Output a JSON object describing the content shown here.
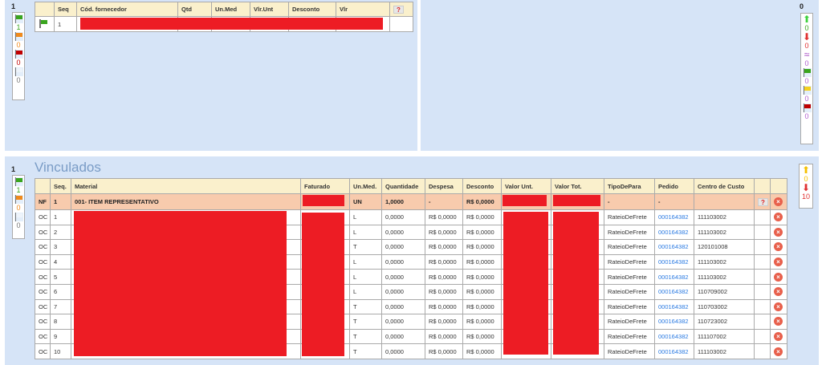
{
  "top_left": {
    "count": "1",
    "legend": [
      {
        "icon": "green-flag-icon",
        "color": "#3aa51e",
        "value": "1"
      },
      {
        "icon": "orange-flag-icon",
        "color": "#f08a1c",
        "value": "0"
      },
      {
        "icon": "red-flag-icon",
        "color": "#c00000",
        "value": "0"
      },
      {
        "icon": "white-flag-icon",
        "color": "#eef4fb",
        "value": "0"
      }
    ],
    "headers": [
      "",
      "Seq",
      "Cód. fornecedor",
      "Qtd",
      "Un.Med",
      "Vlr.Unt",
      "Desconto",
      "Vlr",
      ""
    ],
    "rows": [
      {
        "seq": "1"
      }
    ]
  },
  "top_right": {
    "count": "0",
    "legend": [
      {
        "icon": "arrow-up-icon",
        "glyph": "⬆",
        "color": "#3dd13d",
        "value": "0"
      },
      {
        "icon": "arrow-down-icon",
        "glyph": "⬇",
        "color": "#e03030",
        "value": "0"
      },
      {
        "icon": "approx-icon",
        "glyph": "≈",
        "color": "#a040c0",
        "value": "0"
      },
      {
        "icon": "green-flag-icon",
        "color": "#3aa51e",
        "value": "0"
      },
      {
        "icon": "yellow-flag-icon",
        "color": "#f5d020",
        "value": "0"
      },
      {
        "icon": "red-flag-icon",
        "color": "#c00000",
        "value": "0"
      }
    ]
  },
  "vinculados": {
    "title": "Vinculados",
    "count": "1",
    "legend": [
      {
        "icon": "green-flag-icon",
        "color": "#3aa51e",
        "value": "1"
      },
      {
        "icon": "orange-flag-icon",
        "color": "#f08a1c",
        "value": "0"
      },
      {
        "icon": "white-flag-icon",
        "color": "#eef4fb",
        "value": "0"
      }
    ],
    "right_legend": [
      {
        "icon": "arrow-up-icon",
        "glyph": "⬆",
        "color": "#f5c000",
        "value": "0"
      },
      {
        "icon": "arrow-down-icon",
        "glyph": "⬇",
        "color": "#e03030",
        "value": "10"
      }
    ],
    "headers": [
      "",
      "Seq.",
      "Material",
      "Faturado",
      "Un.Med.",
      "Quantidade",
      "Despesa",
      "Desconto",
      "Valor Unt.",
      "Valor Tot.",
      "TipoDePara",
      "Pedido",
      "Centro de Custo",
      "",
      ""
    ],
    "nf": {
      "type": "NF",
      "seq": "1",
      "material": "001- ITEM REPRESENTATIVO",
      "unit": "UN",
      "qty": "1,0000",
      "despesa": "-",
      "desconto": "R$ 0,0000",
      "tipo": "-",
      "pedido": "-",
      "centro": ""
    },
    "rows": [
      {
        "type": "OC",
        "seq": "1",
        "unit": "L",
        "qty": "0,0000",
        "despesa": "R$ 0,0000",
        "desconto": "R$ 0,0000",
        "tipo": "RateioDeFrete",
        "pedido": "000164382",
        "centro": "111103002"
      },
      {
        "type": "OC",
        "seq": "2",
        "unit": "L",
        "qty": "0,0000",
        "despesa": "R$ 0,0000",
        "desconto": "R$ 0,0000",
        "tipo": "RateioDeFrete",
        "pedido": "000164382",
        "centro": "111103002"
      },
      {
        "type": "OC",
        "seq": "3",
        "unit": "T",
        "qty": "0,0000",
        "despesa": "R$ 0,0000",
        "desconto": "R$ 0,0000",
        "tipo": "RateioDeFrete",
        "pedido": "000164382",
        "centro": "120101008"
      },
      {
        "type": "OC",
        "seq": "4",
        "unit": "L",
        "qty": "0,0000",
        "despesa": "R$ 0,0000",
        "desconto": "R$ 0,0000",
        "tipo": "RateioDeFrete",
        "pedido": "000164382",
        "centro": "111103002"
      },
      {
        "type": "OC",
        "seq": "5",
        "unit": "L",
        "qty": "0,0000",
        "despesa": "R$ 0,0000",
        "desconto": "R$ 0,0000",
        "tipo": "RateioDeFrete",
        "pedido": "000164382",
        "centro": "111103002"
      },
      {
        "type": "OC",
        "seq": "6",
        "unit": "L",
        "qty": "0,0000",
        "despesa": "R$ 0,0000",
        "desconto": "R$ 0,0000",
        "tipo": "RateioDeFrete",
        "pedido": "000164382",
        "centro": "110709002"
      },
      {
        "type": "OC",
        "seq": "7",
        "unit": "T",
        "qty": "0,0000",
        "despesa": "R$ 0,0000",
        "desconto": "R$ 0,0000",
        "tipo": "RateioDeFrete",
        "pedido": "000164382",
        "centro": "110703002"
      },
      {
        "type": "OC",
        "seq": "8",
        "unit": "T",
        "qty": "0,0000",
        "despesa": "R$ 0,0000",
        "desconto": "R$ 0,0000",
        "tipo": "RateioDeFrete",
        "pedido": "000164382",
        "centro": "110723002"
      },
      {
        "type": "OC",
        "seq": "9",
        "unit": "T",
        "qty": "0,0000",
        "despesa": "R$ 0,0000",
        "desconto": "R$ 0,0000",
        "tipo": "RateioDeFrete",
        "pedido": "000164382",
        "centro": "111107002"
      },
      {
        "type": "OC",
        "seq": "10",
        "unit": "T",
        "qty": "0,0000",
        "despesa": "R$ 0,0000",
        "desconto": "R$ 0,0000",
        "tipo": "RateioDeFrete",
        "pedido": "000164382",
        "centro": "111103002"
      }
    ]
  }
}
